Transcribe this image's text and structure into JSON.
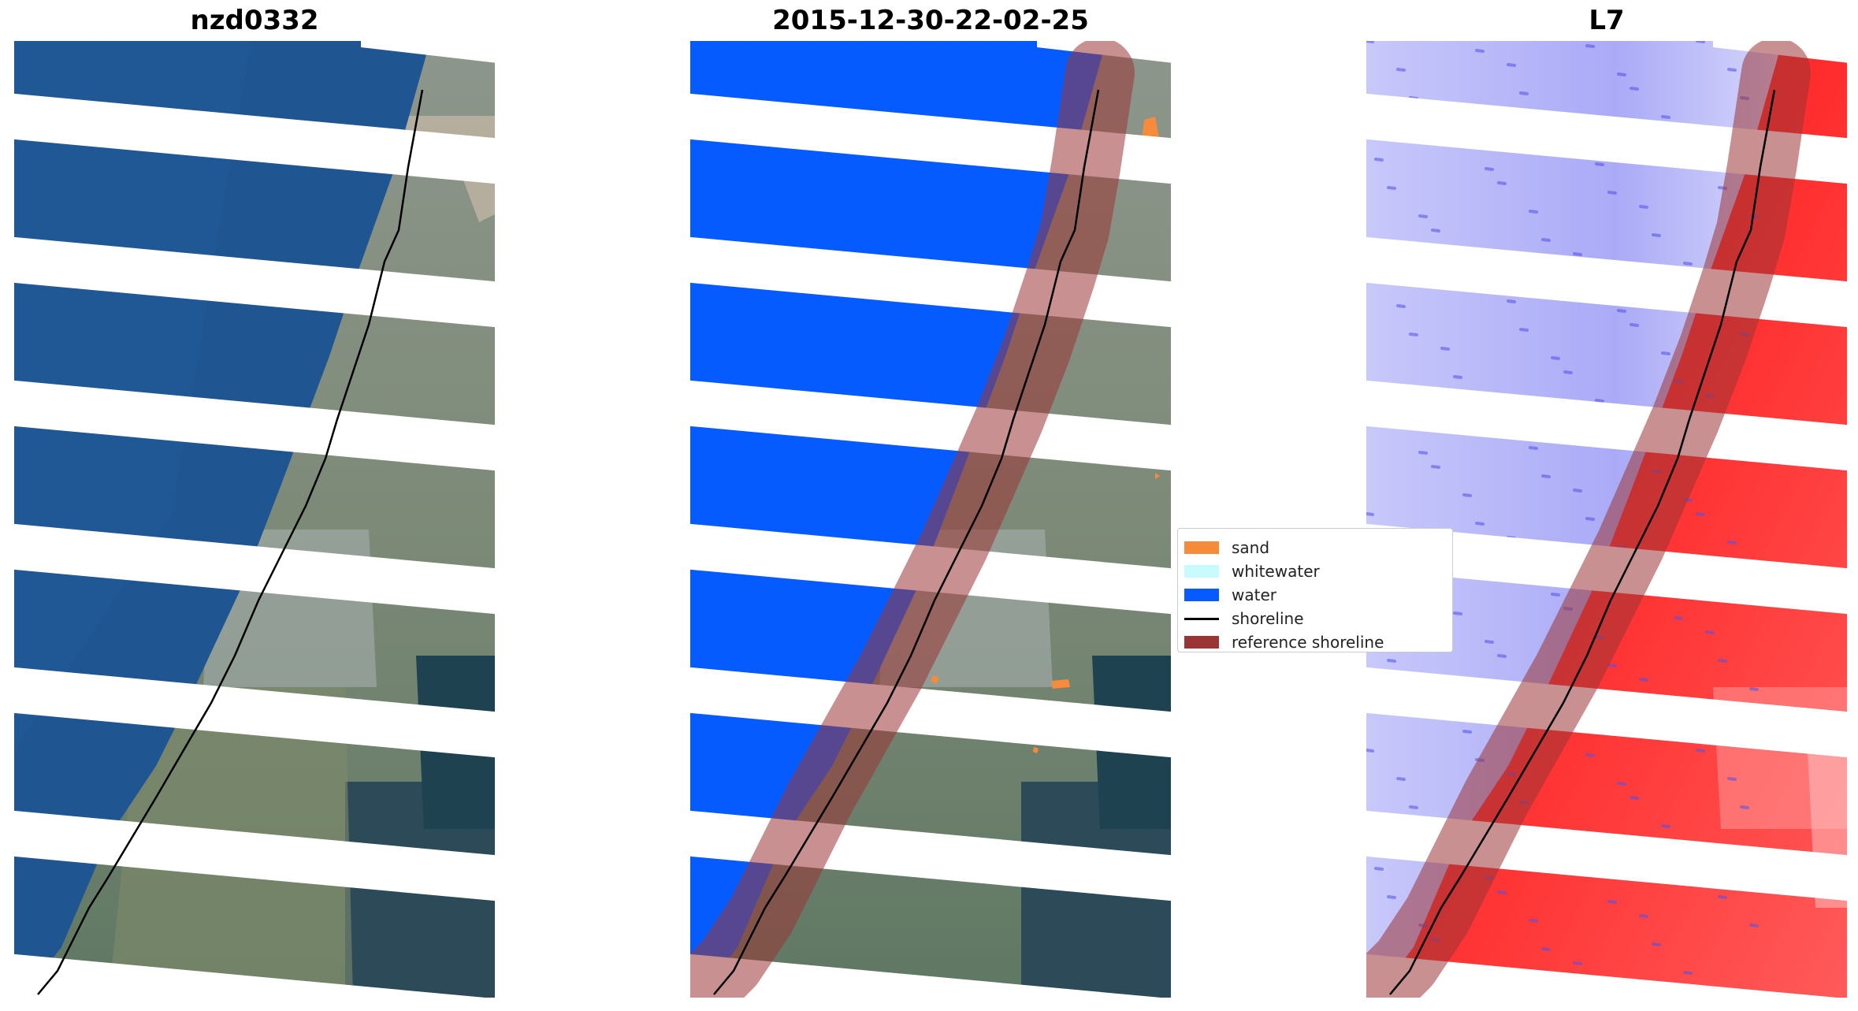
{
  "panels": [
    {
      "title": "nzd0332"
    },
    {
      "title": "2015-12-30-22-02-25"
    },
    {
      "title": "L7"
    }
  ],
  "legend": {
    "items": [
      {
        "label": "sand",
        "kind": "patch",
        "color": "#f68b3c"
      },
      {
        "label": "whitewater",
        "kind": "patch",
        "color": "#c8fbfb"
      },
      {
        "label": "water",
        "kind": "patch",
        "color": "#065bff"
      },
      {
        "label": "shoreline",
        "kind": "line",
        "color": "#000000"
      },
      {
        "label": "reference shoreline",
        "kind": "patch",
        "color": "#9b3535"
      }
    ]
  }
}
